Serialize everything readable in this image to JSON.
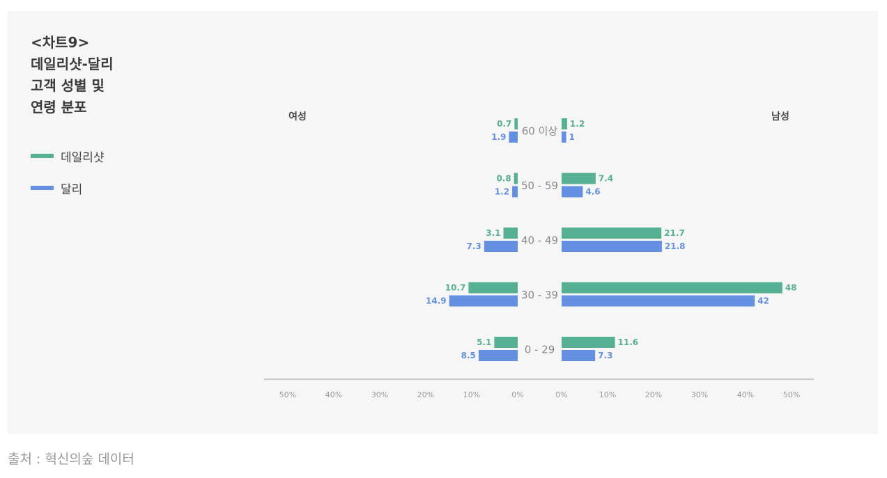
{
  "header": {
    "chart_number": "<차트9>",
    "title_lines": [
      "데일리샷-달리",
      "고객 성별 및",
      "연령 분포"
    ]
  },
  "legend": {
    "items": [
      {
        "label": "데일리샷",
        "color": "#56b093"
      },
      {
        "label": "달리",
        "color": "#658fe0"
      }
    ]
  },
  "footer": {
    "source": "출처 : 혁신의숲 데이터"
  },
  "chart_data": {
    "type": "bar",
    "orientation": "horizontal-butterfly",
    "left_label": "여성",
    "right_label": "남성",
    "categories": [
      "60 이상",
      "50 - 59",
      "40 - 49",
      "30 - 39",
      "0 - 29"
    ],
    "series": [
      {
        "name": "데일리샷",
        "color": "#56b093",
        "female": [
          0.7,
          0.8,
          3.1,
          10.7,
          5.1
        ],
        "male": [
          1.2,
          7.4,
          21.7,
          48,
          11.6
        ]
      },
      {
        "name": "달리",
        "color": "#658fe0",
        "female": [
          1.9,
          1.2,
          7.3,
          14.9,
          8.5
        ],
        "male": [
          1,
          4.6,
          21.8,
          42,
          7.3
        ]
      }
    ],
    "left_ticks": [
      "50%",
      "40%",
      "30%",
      "20%",
      "10%",
      "0%"
    ],
    "right_ticks": [
      "0%",
      "10%",
      "20%",
      "30%",
      "40%",
      "50%"
    ],
    "xlim": [
      0,
      50
    ],
    "grid": false
  }
}
